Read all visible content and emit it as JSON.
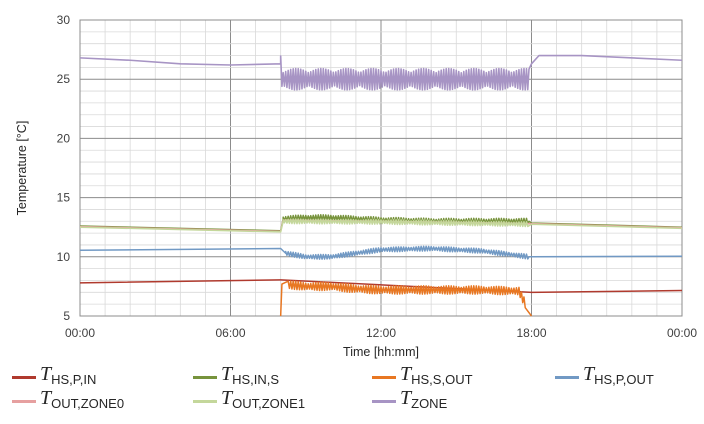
{
  "chart_data": {
    "type": "line",
    "title": "",
    "xlabel": "Time [hh:mm]",
    "ylabel": "Temperature [°C]",
    "xlim": [
      "00:00",
      "24:00"
    ],
    "ylim": [
      5,
      30
    ],
    "x_ticks": [
      "00:00",
      "06:00",
      "12:00",
      "18:00",
      "00:00"
    ],
    "y_ticks": [
      "5",
      "10",
      "15",
      "20",
      "25",
      "30"
    ],
    "grid": true,
    "legend_position": "bottom",
    "series": [
      {
        "name": "T",
        "sub": "HS,P,IN",
        "color": "#b03a2e",
        "points": [
          [
            0,
            7.8
          ],
          [
            8,
            8.05
          ],
          [
            8.01,
            8.05
          ],
          [
            18,
            7.0
          ],
          [
            24,
            7.15
          ]
        ]
      },
      {
        "name": "T",
        "sub": "HS,IN,S",
        "color": "#77933c",
        "points": [
          [
            0,
            12.6
          ],
          [
            8,
            12.2
          ],
          [
            8.1,
            13.2
          ],
          [
            9,
            13.3
          ],
          [
            10,
            13.3
          ],
          [
            11,
            13.2
          ],
          [
            12,
            13.1
          ],
          [
            14,
            13.0
          ],
          [
            16,
            13.0
          ],
          [
            17.9,
            13.0
          ],
          [
            18,
            12.85
          ],
          [
            24,
            12.5
          ]
        ],
        "oscillate": {
          "from": 8.1,
          "to": 17.9,
          "amplitude": 0.25
        }
      },
      {
        "name": "T",
        "sub": "HS,S,OUT",
        "color": "#e87722",
        "points": [
          [
            0,
            null
          ],
          [
            8,
            5.0
          ],
          [
            8.05,
            7.7
          ],
          [
            9,
            7.5
          ],
          [
            10,
            7.5
          ],
          [
            11,
            7.3
          ],
          [
            12,
            7.2
          ],
          [
            14,
            7.2
          ],
          [
            16,
            7.2
          ],
          [
            17.5,
            7.1
          ],
          [
            18,
            5.0
          ]
        ],
        "oscillate": {
          "from": 8.3,
          "to": 17.8,
          "amplitude": 0.35
        }
      },
      {
        "name": "T",
        "sub": "HS,P,OUT",
        "color": "#7199c4",
        "points": [
          [
            0,
            10.55
          ],
          [
            8,
            10.7
          ],
          [
            8.2,
            10.3
          ],
          [
            9,
            10.0
          ],
          [
            10,
            10.0
          ],
          [
            11,
            10.3
          ],
          [
            12,
            10.6
          ],
          [
            14,
            10.7
          ],
          [
            16,
            10.5
          ],
          [
            17.9,
            10.0
          ],
          [
            18,
            10.0
          ],
          [
            24,
            10.05
          ]
        ],
        "oscillate": {
          "from": 8.2,
          "to": 17.9,
          "amplitude": 0.2
        }
      },
      {
        "name": "T",
        "sub": "OUT,ZONE0",
        "color": "#e6a0a0",
        "points": [
          [
            0,
            12.55
          ],
          [
            8,
            12.15
          ],
          [
            8.1,
            13.1
          ],
          [
            12,
            13.0
          ],
          [
            18,
            12.8
          ],
          [
            24,
            12.45
          ]
        ]
      },
      {
        "name": "T",
        "sub": "OUT,ZONE1",
        "color": "#c4d79b",
        "points": [
          [
            0,
            12.5
          ],
          [
            8,
            12.1
          ],
          [
            8.1,
            13.0
          ],
          [
            12,
            12.95
          ],
          [
            18,
            12.75
          ],
          [
            24,
            12.4
          ]
        ],
        "oscillate": {
          "from": 8.1,
          "to": 17.9,
          "amplitude": 0.2
        }
      },
      {
        "name": "T",
        "sub": "ZONE",
        "color": "#a794c4",
        "points": [
          [
            0,
            26.8
          ],
          [
            2,
            26.6
          ],
          [
            4,
            26.3
          ],
          [
            6,
            26.2
          ],
          [
            8,
            26.3
          ],
          [
            8.01,
            25.0
          ],
          [
            12,
            25.0
          ],
          [
            17.9,
            25.0
          ],
          [
            18,
            26.3
          ],
          [
            18.3,
            27.0
          ],
          [
            20,
            27.0
          ],
          [
            24,
            26.6
          ]
        ],
        "oscillate": {
          "from": 8.0,
          "to": 17.95,
          "amplitude": 0.9
        }
      }
    ]
  }
}
